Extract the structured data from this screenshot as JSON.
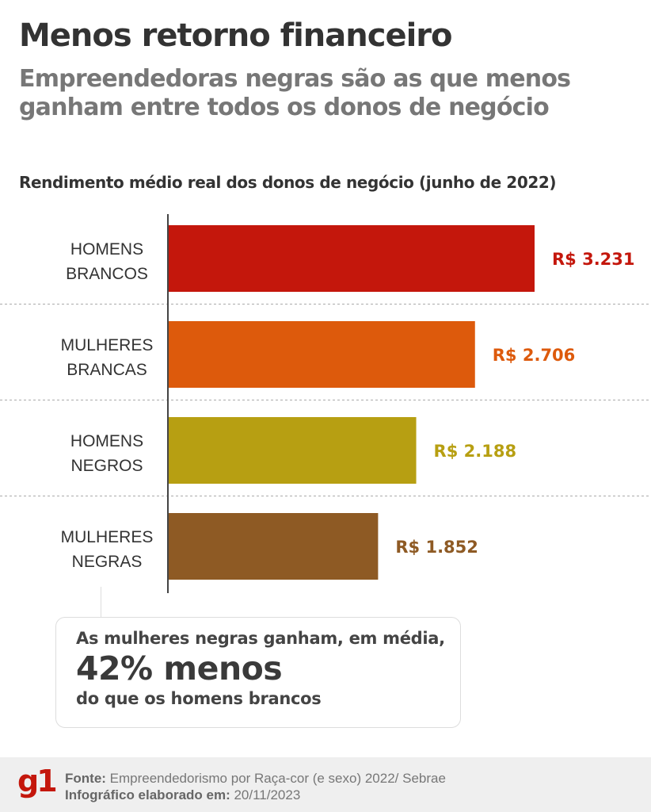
{
  "title": "Menos retorno financeiro",
  "subtitle_lines": [
    "Empreendedoras negras são as que menos",
    "ganham entre todos os donos de negócio"
  ],
  "chart_data": {
    "type": "bar",
    "orientation": "horizontal",
    "title": "Rendimento médio real dos donos de negócio (junho de 2022)",
    "categories": [
      [
        "HOMENS",
        "BRANCOS"
      ],
      [
        "MULHERES",
        "BRANCAS"
      ],
      [
        "HOMENS",
        "NEGROS"
      ],
      [
        "MULHERES",
        "NEGRAS"
      ]
    ],
    "values": [
      3231,
      2706,
      2188,
      1852
    ],
    "value_labels": [
      "R$ 3.231",
      "R$ 2.706",
      "R$ 2.188",
      "R$ 1.852"
    ],
    "colors": [
      "#c4170c",
      "#dd5a0c",
      "#b79f12",
      "#8e5a24"
    ],
    "xlim": [
      0,
      3400
    ],
    "grid": false
  },
  "callout": {
    "line1": "As mulheres negras ganham, em média,",
    "line2": "42% menos",
    "line3": "do que os homens brancos"
  },
  "footer": {
    "logo": "g1",
    "source_label": "Fonte:",
    "source": " Empreendedorismo por Raça-cor (e sexo) 2022/ Sebrae",
    "date_label": "Infográfico elaborado em:",
    "date": " 20/11/2023"
  }
}
